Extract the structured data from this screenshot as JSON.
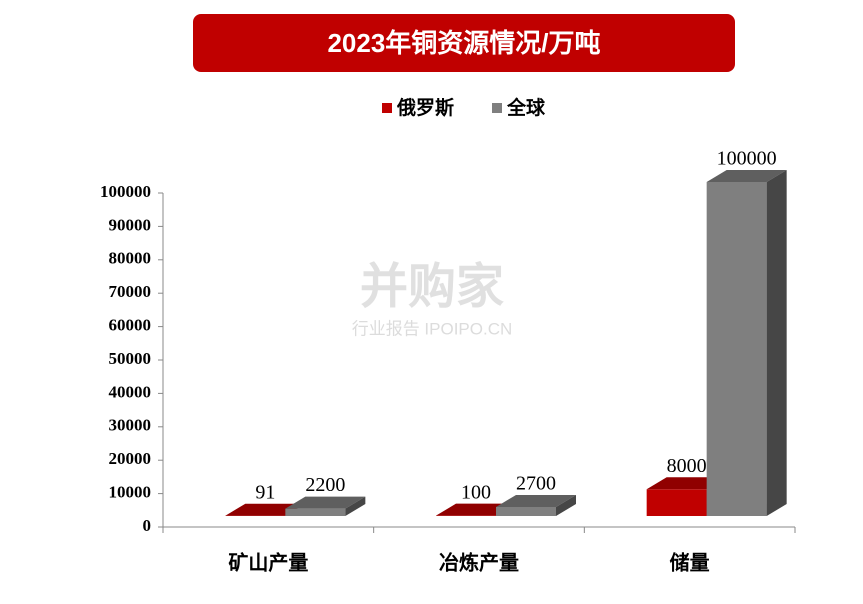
{
  "chart_data": {
    "type": "bar3d",
    "title": "2023年铜资源情况/万吨",
    "categories": [
      "矿山产量",
      "冶炼产量",
      "储量"
    ],
    "series": [
      {
        "name": "俄罗斯",
        "color": "#c00000",
        "values": [
          91,
          100,
          8000
        ]
      },
      {
        "name": "全球",
        "color": "#7f7f7f",
        "values": [
          2200,
          2700,
          100000
        ]
      }
    ],
    "ylim": [
      0,
      100000
    ],
    "yticks": [
      0,
      10000,
      20000,
      30000,
      40000,
      50000,
      60000,
      70000,
      80000,
      90000,
      100000
    ],
    "legend": "top",
    "watermark": "并购家",
    "watermark_sub": "行业报告 IPOIPO.CN"
  }
}
